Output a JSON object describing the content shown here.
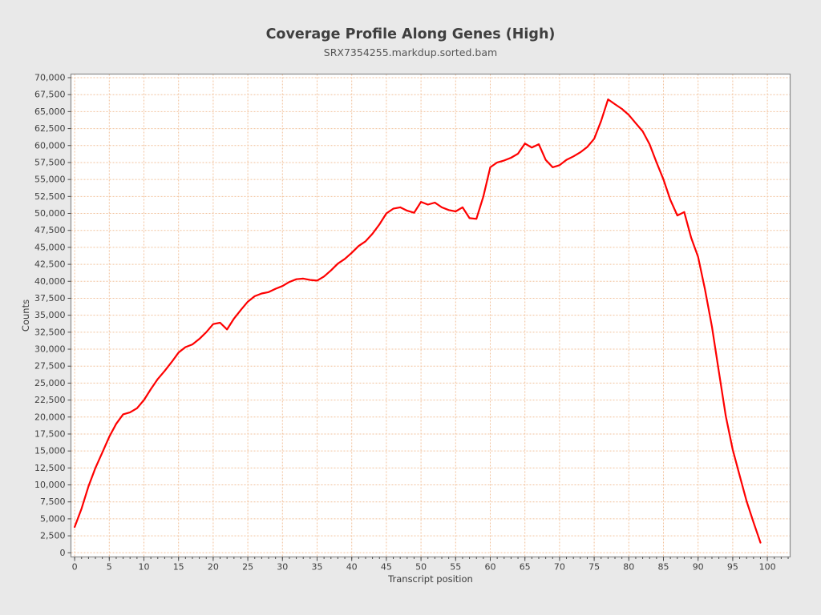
{
  "header": {
    "title": "Coverage Profile Along Genes (High)",
    "subtitle": "SRX7354255.markdup.sorted.bam"
  },
  "style": {
    "background": "#e9e9e9",
    "plot_background": "#ffffff",
    "grid_color": "#f2c29c",
    "frame_color": "#8a8a8a",
    "tick_color": "#4a4a4a",
    "line_color": "#fe0000"
  },
  "chart_data": {
    "type": "line",
    "title": "Coverage Profile Along Genes (High)",
    "subtitle": "SRX7354255.markdup.sorted.bam",
    "xlabel": "Transcript position",
    "ylabel": "Counts",
    "xlim": [
      -0.6,
      103.4
    ],
    "ylim": [
      0,
      70000
    ],
    "x_tick_step": 5,
    "x_minor_tick_step": 1,
    "y_tick_step": 2500,
    "grid": true,
    "grid_style": "dashed",
    "legend": "none",
    "x_tick_labels": [
      "0",
      "5",
      "10",
      "15",
      "20",
      "25",
      "30",
      "35",
      "40",
      "45",
      "50",
      "55",
      "60",
      "65",
      "70",
      "75",
      "80",
      "85",
      "90",
      "95",
      "100"
    ],
    "y_tick_labels": [
      "0",
      "2,500",
      "5,000",
      "7,500",
      "10,000",
      "12,500",
      "15,000",
      "17,500",
      "20,000",
      "22,500",
      "25,000",
      "27,500",
      "30,000",
      "32,500",
      "35,000",
      "37,500",
      "40,000",
      "42,500",
      "45,000",
      "47,500",
      "50,000",
      "52,500",
      "55,000",
      "57,500",
      "60,000",
      "62,500",
      "65,000",
      "67,500",
      "70,000"
    ],
    "series": [
      {
        "name": "SRX7354255.markdup.sorted.bam",
        "color": "#fe0000",
        "x_start": 0,
        "x_step": 1,
        "values": [
          3800,
          6500,
          9800,
          12500,
          14800,
          17100,
          19000,
          20400,
          20700,
          21300,
          22500,
          24100,
          25600,
          26800,
          28100,
          29500,
          30300,
          30700,
          31500,
          32500,
          33700,
          33900,
          32900,
          34500,
          35800,
          37000,
          37800,
          38200,
          38400,
          38900,
          39300,
          39900,
          40300,
          40400,
          40200,
          40100,
          40700,
          41600,
          42600,
          43300,
          44200,
          45200,
          45900,
          47000,
          48400,
          50000,
          50700,
          50900,
          50400,
          50100,
          51700,
          51300,
          51600,
          50900,
          50500,
          50300,
          50900,
          49300,
          49200,
          52500,
          56800,
          57500,
          57800,
          58200,
          58800,
          60300,
          59700,
          60200,
          57900,
          56800,
          57100,
          57900,
          58400,
          59000,
          59800,
          61000,
          63600,
          66800,
          66100,
          65400,
          64500,
          63300,
          62100,
          60200,
          57500,
          55000,
          52000,
          49700,
          50200,
          46400,
          43600,
          38800,
          33300,
          26700,
          20100,
          15200,
          11400,
          7600,
          4500,
          1500
        ]
      }
    ]
  }
}
